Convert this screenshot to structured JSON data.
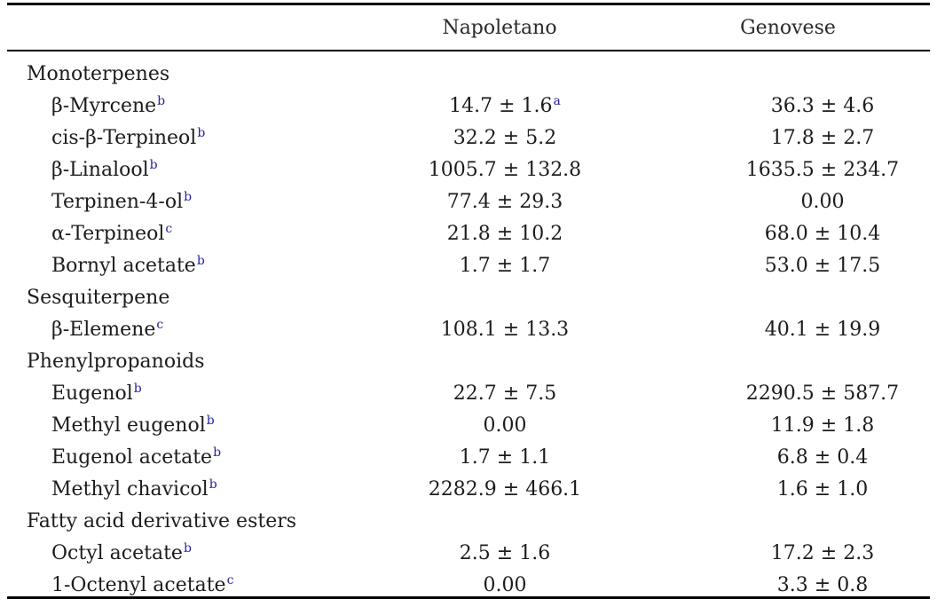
{
  "table": {
    "columns": [
      {
        "label": ""
      },
      {
        "label": "Napoletano"
      },
      {
        "label": "Genovese"
      }
    ],
    "rows": [
      {
        "type": "category",
        "label": "Monoterpenes"
      },
      {
        "type": "compound",
        "name": "β-Myrcene",
        "name_sup": "b",
        "napoletano": "14.7 ± 1.6",
        "napoletano_sup": "a",
        "genovese": "36.3 ± 4.6",
        "genovese_sup": ""
      },
      {
        "type": "compound",
        "name": "cis-β-Terpineol",
        "name_sup": "b",
        "napoletano": "32.2 ± 5.2",
        "napoletano_sup": "",
        "genovese": "17.8 ± 2.7",
        "genovese_sup": ""
      },
      {
        "type": "compound",
        "name": "β-Linalool",
        "name_sup": "b",
        "napoletano": "1005.7 ± 132.8",
        "napoletano_sup": "",
        "genovese": "1635.5 ± 234.7",
        "genovese_sup": ""
      },
      {
        "type": "compound",
        "name": "Terpinen-4-ol",
        "name_sup": "b",
        "napoletano": "77.4 ± 29.3",
        "napoletano_sup": "",
        "genovese": "0.00",
        "genovese_sup": ""
      },
      {
        "type": "compound",
        "name": "α-Terpineol",
        "name_sup": "c",
        "napoletano": "21.8 ± 10.2",
        "napoletano_sup": "",
        "genovese": "68.0 ± 10.4",
        "genovese_sup": ""
      },
      {
        "type": "compound",
        "name": "Bornyl acetate",
        "name_sup": "b",
        "napoletano": "1.7 ± 1.7",
        "napoletano_sup": "",
        "genovese": "53.0 ± 17.5",
        "genovese_sup": ""
      },
      {
        "type": "category",
        "label": "Sesquiterpene"
      },
      {
        "type": "compound",
        "name": "β-Elemene",
        "name_sup": "c",
        "napoletano": "108.1 ± 13.3",
        "napoletano_sup": "",
        "genovese": "40.1 ± 19.9",
        "genovese_sup": ""
      },
      {
        "type": "category",
        "label": "Phenylpropanoids"
      },
      {
        "type": "compound",
        "name": "Eugenol",
        "name_sup": "b",
        "napoletano": "22.7 ± 7.5",
        "napoletano_sup": "",
        "genovese": "2290.5 ± 587.7",
        "genovese_sup": ""
      },
      {
        "type": "compound",
        "name": "Methyl eugenol",
        "name_sup": "b",
        "napoletano": "0.00",
        "napoletano_sup": "",
        "genovese": "11.9 ± 1.8",
        "genovese_sup": ""
      },
      {
        "type": "compound",
        "name": "Eugenol acetate",
        "name_sup": "b",
        "napoletano": "1.7 ± 1.1",
        "napoletano_sup": "",
        "genovese": "6.8 ± 0.4",
        "genovese_sup": ""
      },
      {
        "type": "compound",
        "name": "Methyl chavicol",
        "name_sup": "b",
        "napoletano": "2282.9 ± 466.1",
        "napoletano_sup": "",
        "genovese": "1.6 ± 1.0",
        "genovese_sup": ""
      },
      {
        "type": "category",
        "label": "Fatty acid derivative esters"
      },
      {
        "type": "compound",
        "name": "Octyl acetate",
        "name_sup": "b",
        "napoletano": "2.5 ± 1.6",
        "napoletano_sup": "",
        "genovese": "17.2 ± 2.3",
        "genovese_sup": ""
      },
      {
        "type": "compound",
        "name": "1-Octenyl acetate",
        "name_sup": "c",
        "napoletano": "0.00",
        "napoletano_sup": "",
        "genovese": "3.3 ± 0.8",
        "genovese_sup": ""
      }
    ],
    "colors": {
      "text": "#1c1c1c",
      "superscript": "#23239e",
      "rule": "#000000",
      "background": "#ffffff"
    }
  }
}
